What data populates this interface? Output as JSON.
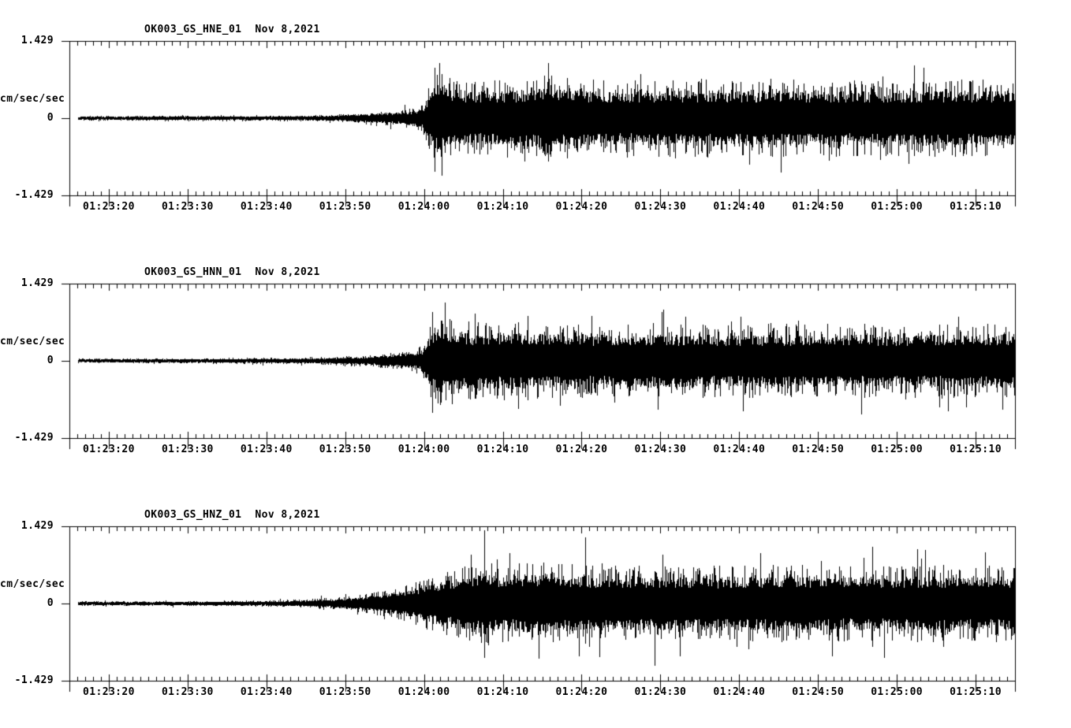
{
  "page": {
    "background": "#ffffff",
    "ink": "#000000"
  },
  "chart_data": {
    "type": "line",
    "kind": "seismogram-multitrace",
    "ylabel": "cm/sec/sec",
    "ylim": [
      -1.429,
      1.429
    ],
    "ytick_labels": [
      "1.429",
      "0",
      "-1.429"
    ],
    "x_start": "01:23:15",
    "x_end": "01:25:15",
    "x_major_tick_interval_sec": 10,
    "x_minor_tick_interval_sec": 1,
    "grid": false,
    "time_labels": [
      "01:23:20",
      "01:23:30",
      "01:23:40",
      "01:23:50",
      "01:24:00",
      "01:24:10",
      "01:24:20",
      "01:24:30",
      "01:24:40",
      "01:24:50",
      "01:25:00",
      "01:25:10"
    ],
    "traces": [
      {
        "id": "HNE",
        "title": "OK003_GS_HNE_01",
        "date": "Nov 8,2021",
        "envelope_t_sec_after_0123": [
          16,
          30,
          42,
          48,
          52,
          55,
          57,
          59,
          59.8,
          60.5,
          61.5,
          63,
          65,
          68,
          72,
          76,
          80,
          85,
          90,
          95,
          100,
          105,
          110,
          115,
          120,
          125,
          130,
          135
        ],
        "envelope_amp": [
          0.045,
          0.05,
          0.055,
          0.07,
          0.1,
          0.13,
          0.16,
          0.2,
          0.26,
          0.55,
          0.88,
          0.8,
          0.72,
          0.7,
          0.74,
          0.8,
          0.72,
          0.7,
          0.72,
          0.74,
          0.71,
          0.73,
          0.7,
          0.72,
          0.71,
          0.73,
          0.72,
          0.74
        ],
        "feature_spikes": [
          {
            "t": 61.3,
            "up": 0.93,
            "down": 0.99
          },
          {
            "t": 75.8,
            "up": 1.02,
            "down": 0.8
          }
        ]
      },
      {
        "id": "HNN",
        "title": "OK003_GS_HNN_01",
        "date": "Nov 8,2021",
        "envelope_t_sec_after_0123": [
          16,
          30,
          42,
          48,
          52,
          55,
          57,
          59,
          59.8,
          60.5,
          61.5,
          63,
          65,
          68,
          72,
          76,
          80,
          85,
          90,
          95,
          100,
          105,
          110,
          115,
          120,
          125,
          130,
          135
        ],
        "envelope_amp": [
          0.045,
          0.05,
          0.06,
          0.075,
          0.1,
          0.14,
          0.17,
          0.22,
          0.3,
          0.6,
          0.9,
          0.82,
          0.75,
          0.72,
          0.74,
          0.72,
          0.7,
          0.68,
          0.7,
          0.7,
          0.68,
          0.7,
          0.68,
          0.7,
          0.68,
          0.7,
          0.69,
          0.72
        ],
        "feature_spikes": [
          {
            "t": 61.0,
            "up": 0.91,
            "down": 0.95
          },
          {
            "t": 66.4,
            "up": 0.88,
            "down": 0.7
          }
        ]
      },
      {
        "id": "HNZ",
        "title": "OK003_GS_HNZ_01",
        "date": "Nov 8,2021",
        "envelope_t_sec_after_0123": [
          16,
          30,
          40,
          45,
          48,
          51,
          54,
          57,
          59,
          60,
          62,
          64,
          66,
          68,
          70,
          73,
          76,
          80,
          85,
          90,
          95,
          100,
          105,
          110,
          115,
          120,
          125,
          130,
          135
        ],
        "envelope_amp": [
          0.042,
          0.05,
          0.06,
          0.08,
          0.11,
          0.15,
          0.22,
          0.32,
          0.4,
          0.48,
          0.58,
          0.66,
          0.74,
          0.82,
          0.72,
          0.76,
          0.8,
          0.72,
          0.7,
          0.72,
          0.7,
          0.71,
          0.73,
          0.72,
          0.7,
          0.71,
          0.72,
          0.7,
          0.73
        ],
        "feature_spikes": [
          {
            "t": 67.6,
            "up": 1.36,
            "down": 1.0
          },
          {
            "t": 80.5,
            "up": 1.22,
            "down": 0.75
          },
          {
            "t": 89.3,
            "up": 0.6,
            "down": 1.15
          },
          {
            "t": 116.9,
            "up": 1.05,
            "down": 0.8
          }
        ]
      }
    ]
  }
}
